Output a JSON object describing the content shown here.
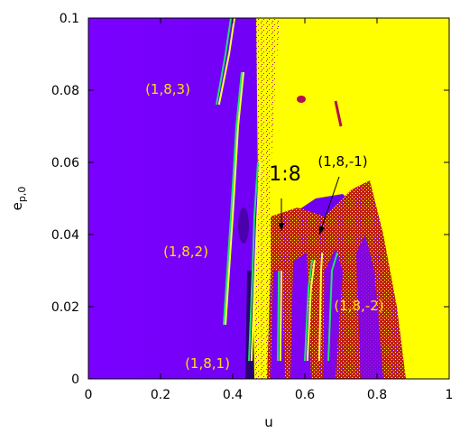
{
  "chart_data": {
    "type": "heatmap",
    "title": "",
    "xlabel": "u",
    "ylabel": {
      "base": "e",
      "subscript": "p,0"
    },
    "xlim": [
      0,
      1
    ],
    "ylim": [
      0,
      0.1
    ],
    "x_ticks": [
      {
        "value": 0,
        "label": "0"
      },
      {
        "value": 0.2,
        "label": "0.2"
      },
      {
        "value": 0.4,
        "label": "0.4"
      },
      {
        "value": 0.6,
        "label": "0.6"
      },
      {
        "value": 0.8,
        "label": "0.8"
      },
      {
        "value": 1,
        "label": "1"
      }
    ],
    "y_ticks": [
      {
        "value": 0,
        "label": "0"
      },
      {
        "value": 0.02,
        "label": "0.02"
      },
      {
        "value": 0.04,
        "label": "0.04"
      },
      {
        "value": 0.06,
        "label": "0.06"
      },
      {
        "value": 0.08,
        "label": "0.08"
      },
      {
        "value": 0.1,
        "label": "0.1"
      }
    ],
    "grid": false,
    "colors": {
      "stable": "#7a00ff",
      "stable_dark": "#5a00d8",
      "chaotic": "#ffff00",
      "intermediate": "#c0200f",
      "curve_green": "#20e070",
      "curve_yellow": "#ffff40",
      "label_yellow": "#ffe000"
    },
    "regions": [
      {
        "name": "stable",
        "u_range": [
          0,
          0.47
        ]
      },
      {
        "name": "chaotic",
        "u_range": [
          0.46,
          1
        ]
      }
    ],
    "resonance_curves": [
      {
        "series": "green",
        "points": [
          [
            0.355,
            0.076
          ],
          [
            0.38,
            0.09
          ],
          [
            0.395,
            0.1
          ]
        ]
      },
      {
        "series": "yellow",
        "points": [
          [
            0.362,
            0.076
          ],
          [
            0.39,
            0.09
          ],
          [
            0.405,
            0.1
          ]
        ]
      },
      {
        "series": "green",
        "points": [
          [
            0.375,
            0.015
          ],
          [
            0.395,
            0.045
          ],
          [
            0.41,
            0.07
          ],
          [
            0.425,
            0.085
          ]
        ]
      },
      {
        "series": "yellow",
        "points": [
          [
            0.38,
            0.015
          ],
          [
            0.4,
            0.045
          ],
          [
            0.415,
            0.07
          ],
          [
            0.43,
            0.085
          ]
        ]
      },
      {
        "series": "green",
        "points": [
          [
            0.445,
            0.005
          ],
          [
            0.455,
            0.03
          ],
          [
            0.46,
            0.045
          ],
          [
            0.47,
            0.06
          ]
        ]
      },
      {
        "series": "yellow",
        "points": [
          [
            0.452,
            0.005
          ],
          [
            0.462,
            0.03
          ],
          [
            0.468,
            0.045
          ],
          [
            0.478,
            0.06
          ]
        ]
      },
      {
        "series": "green",
        "points": [
          [
            0.525,
            0.005
          ],
          [
            0.528,
            0.03
          ]
        ]
      },
      {
        "series": "yellow",
        "points": [
          [
            0.532,
            0.005
          ],
          [
            0.535,
            0.03
          ]
        ]
      },
      {
        "series": "green",
        "points": [
          [
            0.6,
            0.005
          ],
          [
            0.61,
            0.025
          ],
          [
            0.62,
            0.033
          ]
        ]
      },
      {
        "series": "yellow",
        "points": [
          [
            0.607,
            0.005
          ],
          [
            0.617,
            0.025
          ],
          [
            0.627,
            0.033
          ]
        ]
      },
      {
        "series": "yellow",
        "points": [
          [
            0.64,
            0.005
          ],
          [
            0.645,
            0.03
          ],
          [
            0.648,
            0.035
          ]
        ]
      },
      {
        "series": "green",
        "points": [
          [
            0.665,
            0.005
          ],
          [
            0.675,
            0.03
          ],
          [
            0.69,
            0.035
          ]
        ]
      }
    ],
    "annotations": [
      {
        "text": "(1,8,3)",
        "x": 0.22,
        "y": 0.079,
        "color": "label_yellow"
      },
      {
        "text": "(1,8,2)",
        "x": 0.27,
        "y": 0.034,
        "color": "label_yellow"
      },
      {
        "text": "(1,8,1)",
        "x": 0.33,
        "y": 0.003,
        "color": "label_yellow"
      },
      {
        "text": "(1,8,-2)",
        "x": 0.75,
        "y": 0.019,
        "color": "label_yellow"
      },
      {
        "text": "1:8",
        "x": 0.545,
        "y": 0.055,
        "color": "black",
        "size": "large"
      },
      {
        "text": "(1,8,-1)",
        "x": 0.705,
        "y": 0.059,
        "color": "black"
      }
    ],
    "arrows": [
      {
        "from": [
          0.535,
          0.05
        ],
        "to": [
          0.535,
          0.041
        ]
      },
      {
        "from": [
          0.695,
          0.056
        ],
        "to": [
          0.64,
          0.04
        ]
      }
    ]
  }
}
